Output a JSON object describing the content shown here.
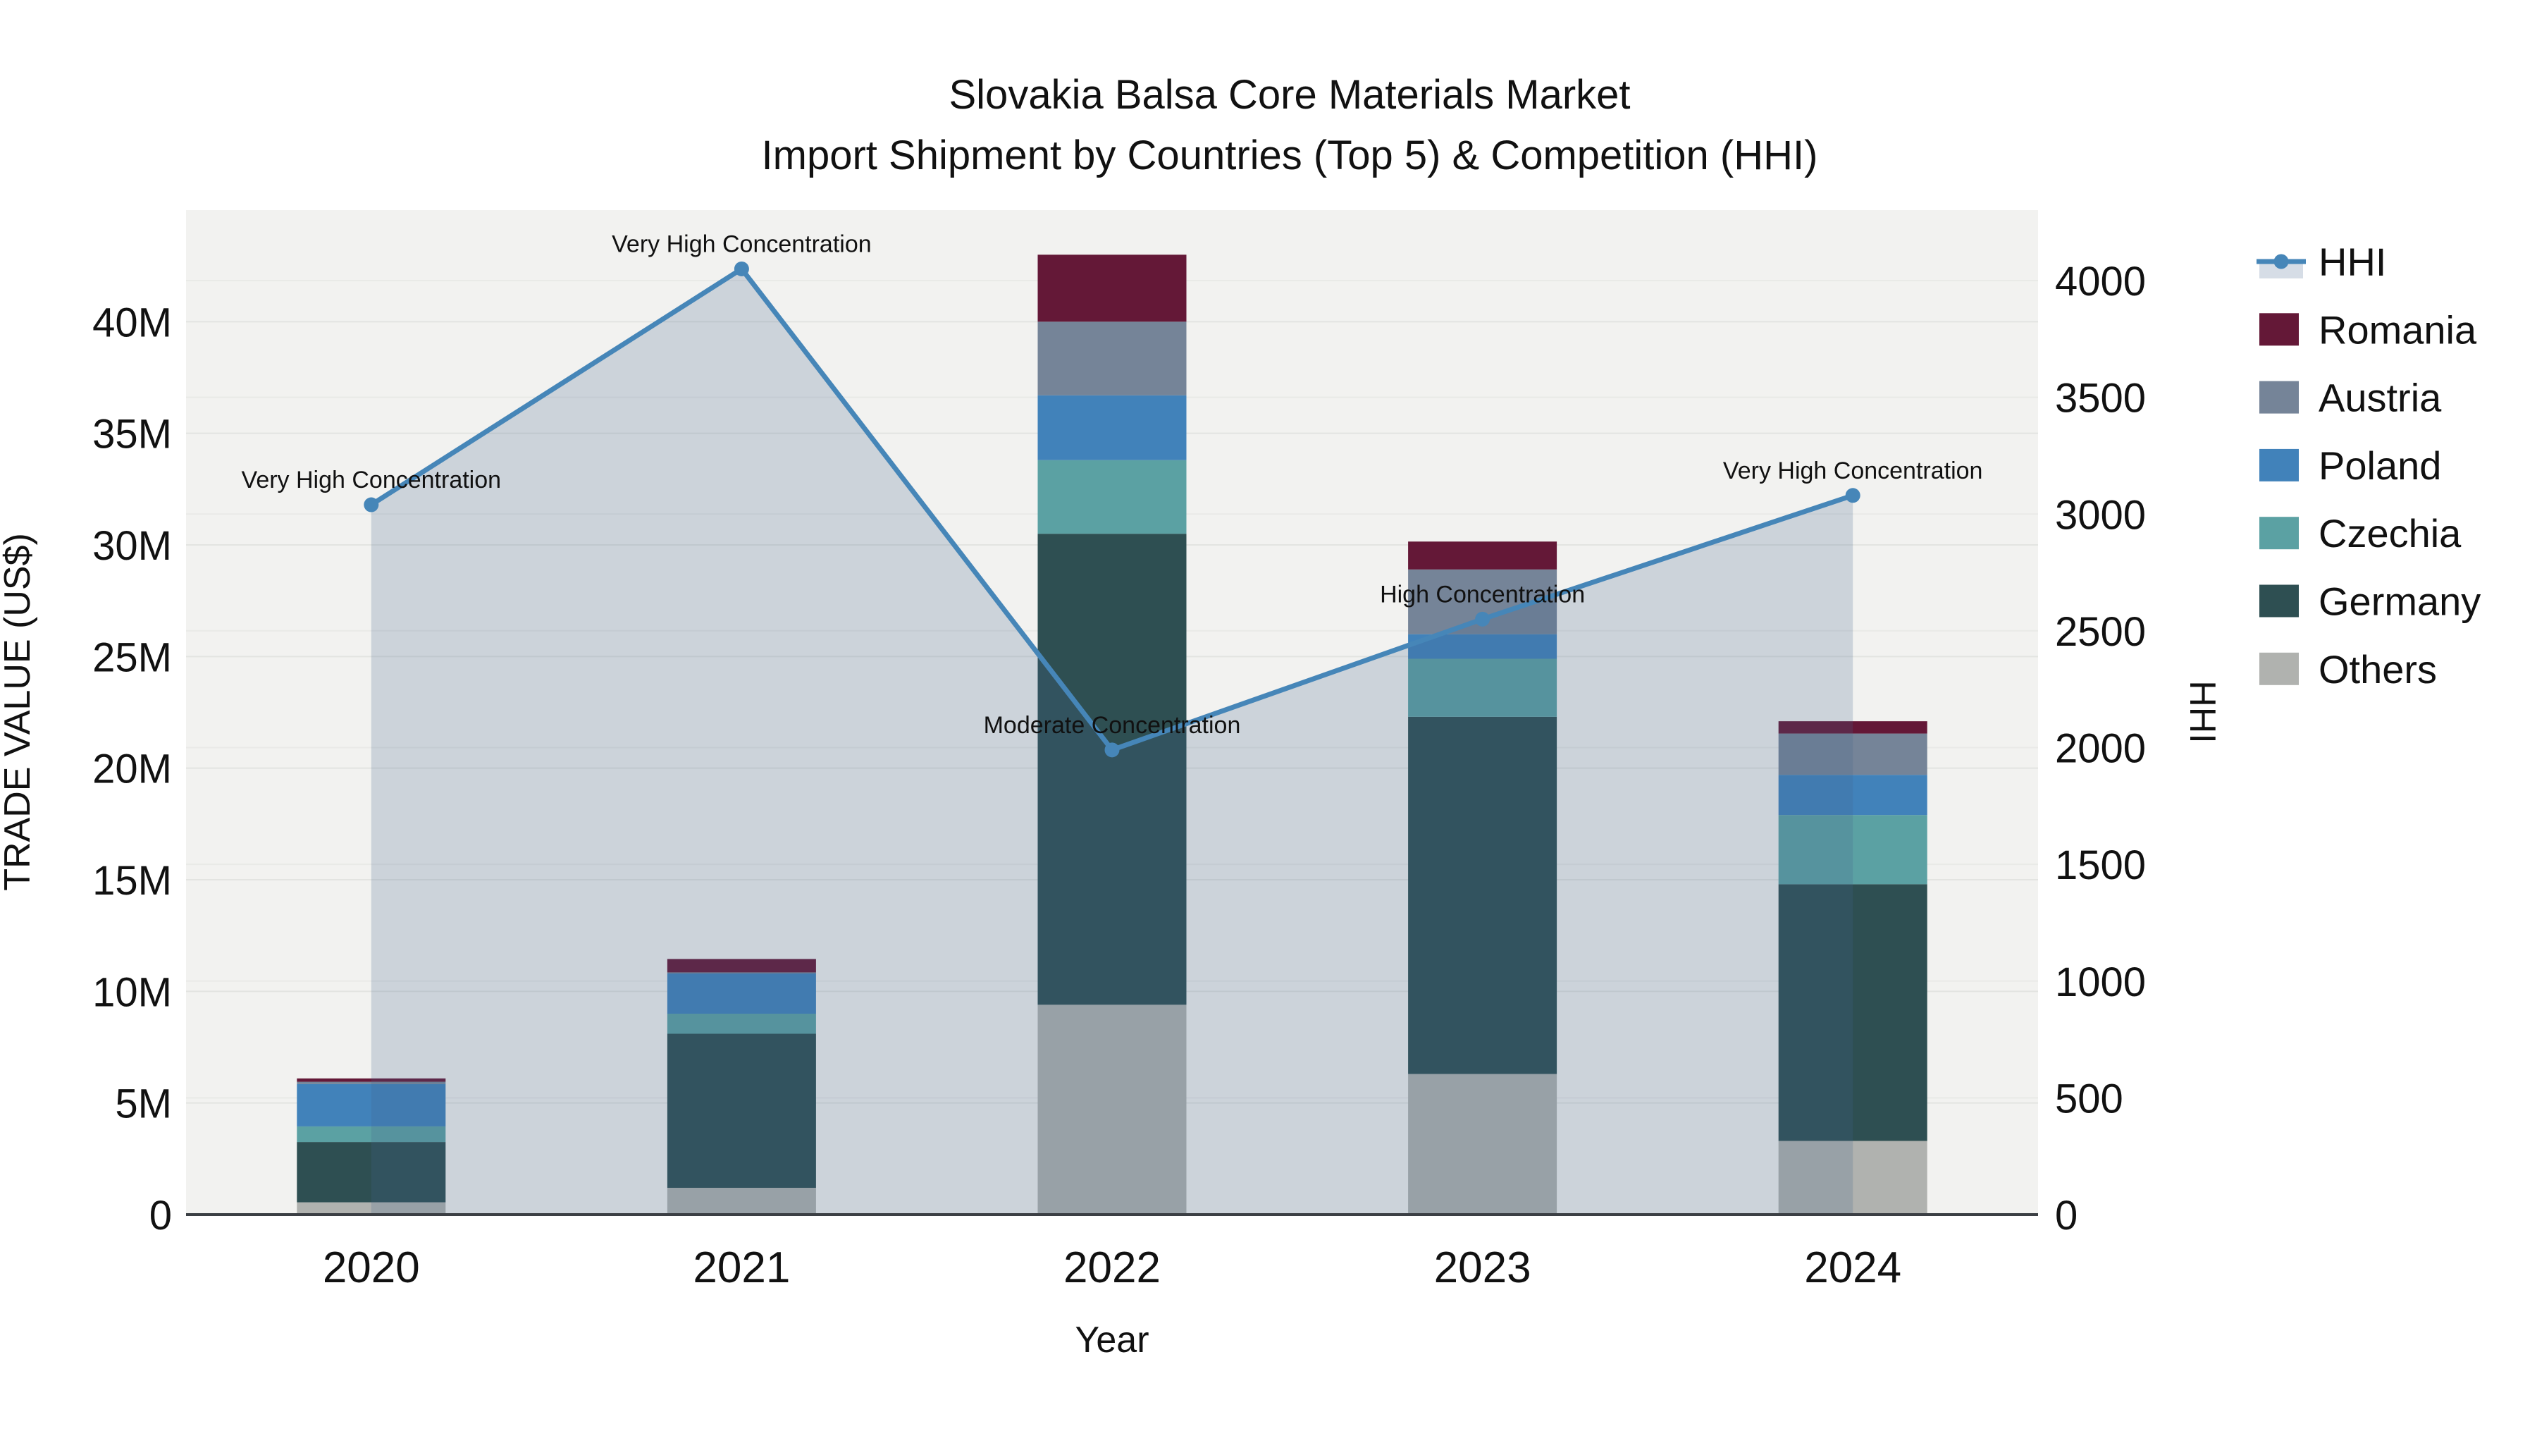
{
  "chart_data": {
    "type": "bar",
    "subtype": "stacked-bar-with-line",
    "title_line1": "Slovakia Balsa Core Materials Market",
    "title_line2": "Import Shipment by Countries (Top 5) & Competition (HHI)",
    "xlabel": "Year",
    "ylabel_left": "TRADE VALUE (US$)",
    "ylabel_right": "HHI",
    "categories": [
      "2020",
      "2021",
      "2022",
      "2023",
      "2024"
    ],
    "bar_unit": "millions US$",
    "series": [
      {
        "name": "Others",
        "color": "#b0b2af",
        "values": [
          0.55,
          1.2,
          9.4,
          6.3,
          3.3
        ]
      },
      {
        "name": "Germany",
        "color": "#2e4f52",
        "values": [
          2.7,
          6.9,
          21.1,
          16.0,
          11.5
        ]
      },
      {
        "name": "Czechia",
        "color": "#5ba1a3",
        "values": [
          0.7,
          0.9,
          3.3,
          2.6,
          3.1
        ]
      },
      {
        "name": "Poland",
        "color": "#4182ba",
        "values": [
          1.9,
          1.8,
          2.9,
          1.1,
          1.8
        ]
      },
      {
        "name": "Austria",
        "color": "#758498",
        "values": [
          0.1,
          0.05,
          3.3,
          2.9,
          1.85
        ]
      },
      {
        "name": "Romania",
        "color": "#641837",
        "values": [
          0.15,
          0.6,
          3.0,
          1.25,
          0.55
        ]
      }
    ],
    "line_series": {
      "name": "HHI",
      "color": "#4686b8",
      "fill_color": "rgba(70,100,140,0.22)",
      "values": [
        3040,
        4050,
        1990,
        2550,
        3080
      ]
    },
    "annotations": [
      "Very High Concentration",
      "Very High Concentration",
      "Moderate Concentration",
      "High Concentration",
      "Very High Concentration"
    ],
    "left_axis": {
      "ticks": [
        "0",
        "5M",
        "10M",
        "15M",
        "20M",
        "25M",
        "30M",
        "35M",
        "40M"
      ],
      "tick_values": [
        0,
        5,
        10,
        15,
        20,
        25,
        30,
        35,
        40
      ],
      "max": 45
    },
    "right_axis": {
      "ticks": [
        "0",
        "500",
        "1000",
        "1500",
        "2000",
        "2500",
        "3000",
        "3500",
        "4000"
      ],
      "tick_values": [
        0,
        500,
        1000,
        1500,
        2000,
        2500,
        3000,
        3500,
        4000
      ],
      "max": 4302
    },
    "legend": [
      "HHI",
      "Romania",
      "Austria",
      "Poland",
      "Czechia",
      "Germany",
      "Others"
    ],
    "layout": {
      "plot_bg": "#f2f2f0",
      "grid_color_left": "#e3e4e1",
      "grid_color_right": "#e9eae7",
      "axis_line_color": "#3b3f44",
      "grid": "on",
      "legend_position": "right"
    }
  }
}
